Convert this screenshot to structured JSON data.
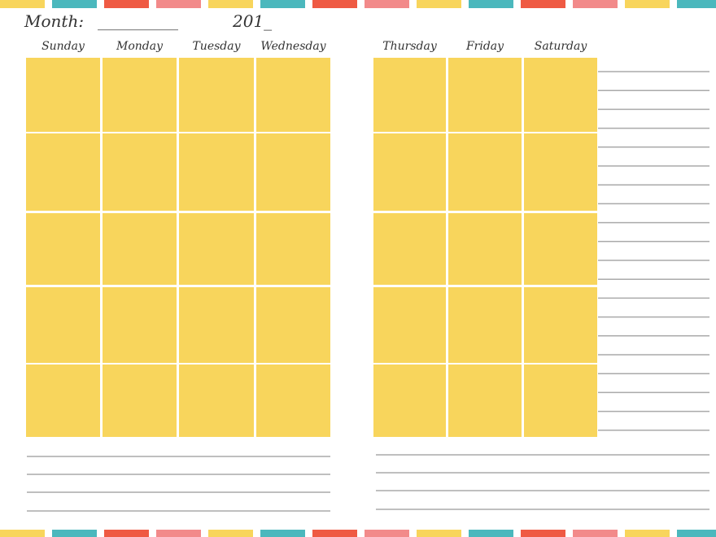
{
  "header": {
    "month_label": "Month:",
    "month_blank": "___________",
    "year": "201_"
  },
  "days": {
    "left": [
      "Sunday",
      "Monday",
      "Tuesday",
      "Wednesday"
    ],
    "right": [
      "Thursday",
      "Friday",
      "Saturday"
    ]
  }
}
